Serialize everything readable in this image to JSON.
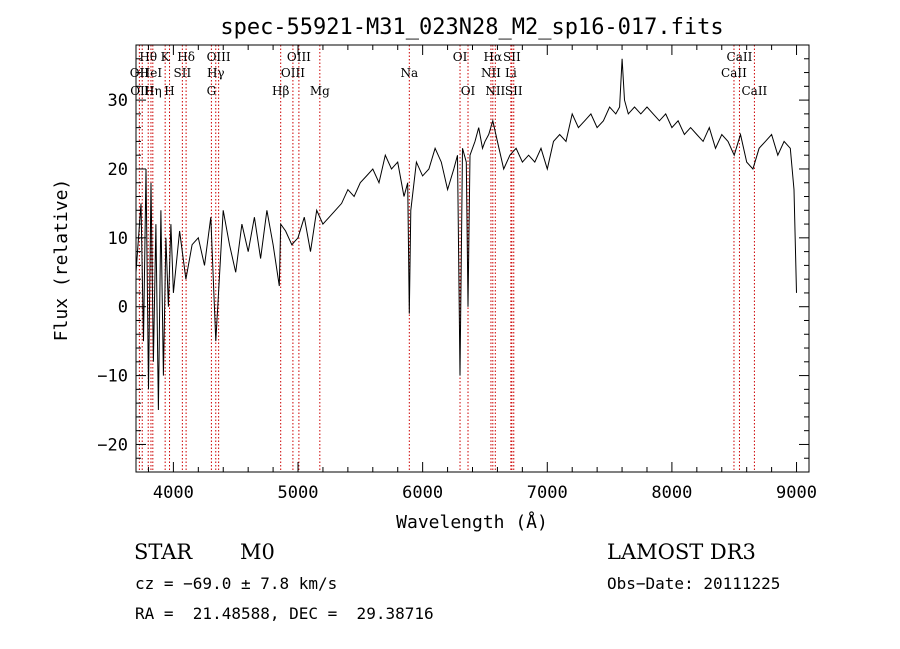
{
  "chart_data": {
    "type": "line",
    "title": "spec-55921-M31_023N28_M2_sp16-017.fits",
    "xlabel": "Wavelength (Å)",
    "ylabel": "Flux (relative)",
    "xlim": [
      3700,
      9100
    ],
    "ylim": [
      -24,
      38
    ],
    "xticks": [
      4000,
      5000,
      6000,
      7000,
      8000,
      9000
    ],
    "yticks": [
      -20,
      -10,
      0,
      10,
      20,
      30
    ],
    "xtick_labels": [
      "4000",
      "5000",
      "6000",
      "7000",
      "8000",
      "9000"
    ],
    "ytick_labels": [
      "−20",
      "−10",
      "0",
      "10",
      "20",
      "30"
    ],
    "series": [
      {
        "name": "spectrum",
        "x": [
          3700,
          3740,
          3760,
          3780,
          3800,
          3820,
          3840,
          3860,
          3880,
          3900,
          3920,
          3940,
          3960,
          3980,
          4000,
          4050,
          4100,
          4150,
          4200,
          4250,
          4300,
          4340,
          4400,
          4450,
          4500,
          4550,
          4600,
          4650,
          4700,
          4750,
          4800,
          4850,
          4861,
          4900,
          4950,
          5000,
          5050,
          5100,
          5150,
          5200,
          5250,
          5300,
          5350,
          5400,
          5450,
          5500,
          5550,
          5600,
          5650,
          5700,
          5750,
          5800,
          5850,
          5880,
          5893,
          5905,
          5950,
          6000,
          6050,
          6100,
          6150,
          6200,
          6250,
          6280,
          6300,
          6320,
          6350,
          6364,
          6380,
          6420,
          6450,
          6480,
          6500,
          6530,
          6563,
          6600,
          6650,
          6700,
          6750,
          6800,
          6850,
          6900,
          6950,
          7000,
          7050,
          7100,
          7150,
          7200,
          7250,
          7300,
          7350,
          7400,
          7450,
          7500,
          7550,
          7580,
          7600,
          7620,
          7650,
          7700,
          7750,
          7800,
          7850,
          7900,
          7950,
          8000,
          8050,
          8100,
          8150,
          8200,
          8250,
          8300,
          8350,
          8400,
          8450,
          8500,
          8550,
          8600,
          8650,
          8700,
          8750,
          8800,
          8850,
          8900,
          8950,
          8980,
          9000
        ],
        "y": [
          5,
          15,
          -5,
          20,
          -12,
          18,
          -8,
          12,
          -15,
          14,
          -10,
          10,
          0,
          12,
          2,
          11,
          4,
          9,
          10,
          6,
          13,
          -5,
          14,
          9,
          5,
          12,
          8,
          13,
          7,
          14,
          9,
          3,
          12,
          11,
          9,
          10,
          13,
          8,
          14,
          12,
          13,
          14,
          15,
          17,
          16,
          18,
          19,
          20,
          18,
          22,
          20,
          21,
          16,
          18,
          -1,
          14,
          21,
          19,
          20,
          23,
          21,
          17,
          20,
          22,
          -10,
          23,
          21,
          0,
          22,
          24,
          26,
          23,
          24,
          25,
          27,
          24,
          20,
          22,
          23,
          21,
          22,
          21,
          23,
          20,
          24,
          25,
          24,
          28,
          26,
          27,
          28,
          26,
          27,
          29,
          28,
          29,
          36,
          30,
          28,
          29,
          28,
          29,
          28,
          27,
          28,
          26,
          27,
          25,
          26,
          25,
          24,
          26,
          23,
          25,
          24,
          22,
          25,
          21,
          20,
          23,
          24,
          25,
          22,
          24,
          23,
          17,
          2
        ]
      }
    ],
    "line_markers": [
      {
        "label": "Hθ",
        "x": 3798,
        "row": 1
      },
      {
        "label": "OII",
        "x": 3727,
        "row": 2
      },
      {
        "label": "OIII",
        "x": 3750,
        "row": 3
      },
      {
        "label": "HeI",
        "x": 3820,
        "row": 2
      },
      {
        "label": "Hη",
        "x": 3835,
        "row": 3
      },
      {
        "label": "K",
        "x": 3934,
        "row": 1
      },
      {
        "label": "H",
        "x": 3969,
        "row": 3
      },
      {
        "label": "SII",
        "x": 4072,
        "row": 2
      },
      {
        "label": "Hδ",
        "x": 4102,
        "row": 1
      },
      {
        "label": "OIII",
        "x": 4363,
        "row": 1
      },
      {
        "label": "Hγ",
        "x": 4340,
        "row": 2
      },
      {
        "label": "G",
        "x": 4305,
        "row": 3
      },
      {
        "label": "Hβ",
        "x": 4861,
        "row": 3
      },
      {
        "label": "OIII",
        "x": 5007,
        "row": 1
      },
      {
        "label": "OIII",
        "x": 4959,
        "row": 2
      },
      {
        "label": "Mg",
        "x": 5175,
        "row": 3
      },
      {
        "label": "Na",
        "x": 5893,
        "row": 2
      },
      {
        "label": "OI",
        "x": 6300,
        "row": 1
      },
      {
        "label": "OI",
        "x": 6364,
        "row": 3
      },
      {
        "label": "Hα",
        "x": 6563,
        "row": 1
      },
      {
        "label": "NII",
        "x": 6548,
        "row": 2
      },
      {
        "label": "NII",
        "x": 6583,
        "row": 3
      },
      {
        "label": "SII",
        "x": 6716,
        "row": 1
      },
      {
        "label": "Li",
        "x": 6708,
        "row": 2
      },
      {
        "label": "SII",
        "x": 6731,
        "row": 3
      },
      {
        "label": "CaII",
        "x": 8542,
        "row": 1
      },
      {
        "label": "CaII",
        "x": 8498,
        "row": 2
      },
      {
        "label": "CaII",
        "x": 8662,
        "row": 3
      }
    ],
    "marker_color": "#cc0000"
  },
  "info": {
    "class": "STAR",
    "subclass": "M0",
    "survey": "LAMOST DR3",
    "cz": "cz = −69.0 ± 7.8 km/s",
    "obs_date": "Obs−Date: 20111225",
    "coords": "RA =  21.48588, DEC =  29.38716"
  }
}
